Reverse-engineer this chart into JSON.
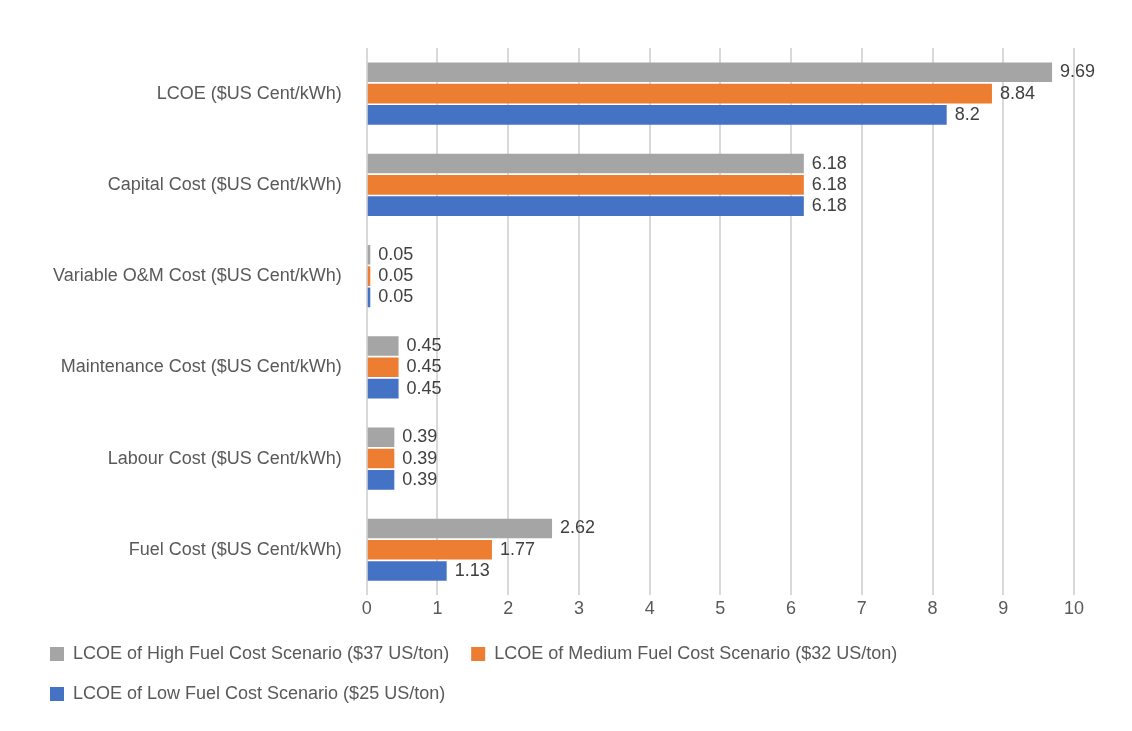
{
  "chart_data": {
    "type": "bar",
    "orientation": "horizontal",
    "categories": [
      "LCOE ($US Cent/kWh)",
      "Capital Cost ($US Cent/kWh)",
      "Variable O&M Cost ($US Cent/kWh)",
      "Maintenance Cost ($US Cent/kWh)",
      "Labour Cost ($US Cent/kWh)",
      "Fuel Cost ($US Cent/kWh)"
    ],
    "series": [
      {
        "name": "LCOE of High Fuel Cost Scenario ($37 US/ton)",
        "color": "#a5a5a5",
        "values": [
          9.69,
          6.18,
          0.05,
          0.45,
          0.39,
          2.62
        ]
      },
      {
        "name": "LCOE of Medium Fuel Cost Scenario ($32 US/ton)",
        "color": "#ed7d31",
        "values": [
          8.84,
          6.18,
          0.05,
          0.45,
          0.39,
          1.77
        ]
      },
      {
        "name": "LCOE of Low Fuel Cost Scenario ($25 US/ton)",
        "color": "#4472c4",
        "values": [
          8.2,
          6.18,
          0.05,
          0.45,
          0.39,
          1.13
        ]
      }
    ],
    "xlim": [
      0,
      10
    ],
    "xticks": [
      0,
      1,
      2,
      3,
      4,
      5,
      6,
      7,
      8,
      9,
      10
    ],
    "grid": "x",
    "legend": "bottom",
    "data_labels": true
  }
}
